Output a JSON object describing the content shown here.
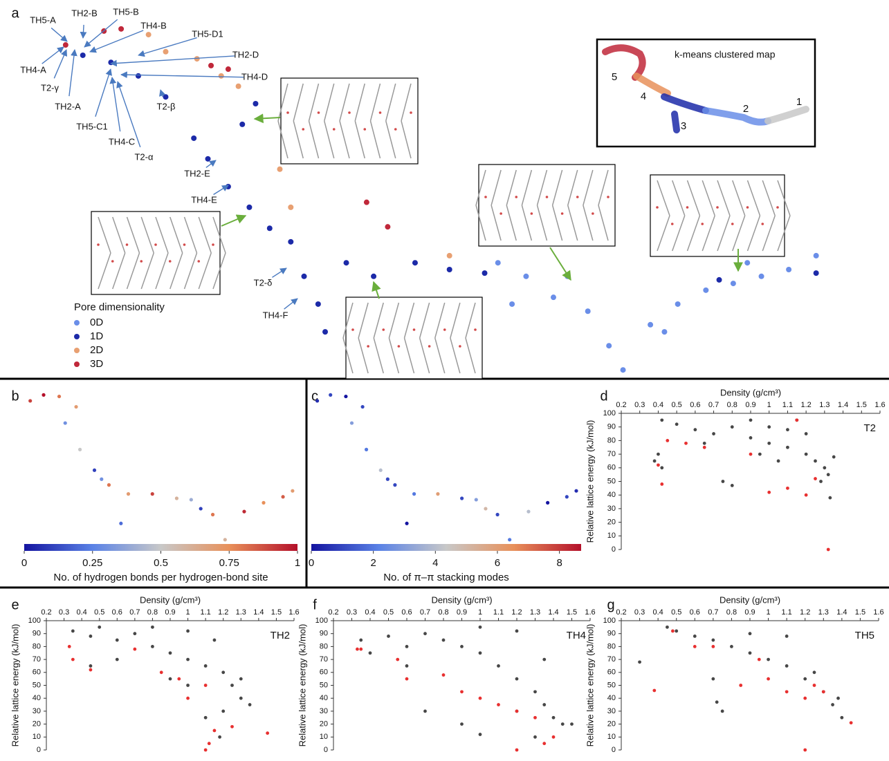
{
  "chart_data": [
    {
      "panel": "a",
      "type": "scatter",
      "xlim": [
        0,
        100
      ],
      "ylim": [
        0,
        100
      ],
      "legend_title": "Pore dimensionality",
      "series": [
        {
          "name": "0D",
          "color": "#6a8ee8",
          "x": [
            57.5,
            61.1,
            64.6,
            69.0,
            71.7,
            73.5,
            77.0,
            80.5,
            84.1,
            87.6,
            91.2,
            94.7,
            98.2,
            59.3,
            66.4,
            78.8,
            89.4
          ],
          "y": [
            32.0,
            28.2,
            22.3,
            18.4,
            8.7,
            1.9,
            14.6,
            20.4,
            24.3,
            26.2,
            28.2,
            30.1,
            34.0,
            20.4,
            28.2,
            12.6,
            32.0
          ]
        },
        {
          "name": "1D",
          "color": "#1c2aa8",
          "x": [
            4.4,
            8.0,
            11.5,
            15.0,
            18.6,
            20.4,
            23.0,
            25.7,
            28.3,
            31.0,
            32.7,
            34.5,
            35.4,
            38.1,
            41.6,
            46.9,
            51.3,
            55.8,
            24.8,
            26.5,
            85.8,
            98.2
          ],
          "y": [
            90.3,
            88.3,
            84.5,
            78.6,
            67.0,
            61.2,
            53.4,
            47.6,
            41.7,
            37.9,
            28.2,
            20.4,
            12.6,
            32.0,
            28.2,
            32.0,
            30.1,
            29.1,
            70.9,
            76.7,
            27.2,
            29.1
          ]
        },
        {
          "name": "2D",
          "color": "#e8a072",
          "x": [
            12.8,
            15.0,
            19.0,
            22.1,
            24.3,
            29.6,
            31.0,
            51.3
          ],
          "y": [
            96.1,
            91.3,
            89.3,
            84.5,
            81.6,
            58.3,
            47.6,
            34.0
          ]
        },
        {
          "name": "3D",
          "color": "#c0283a",
          "x": [
            2.2,
            7.1,
            9.3,
            20.8,
            23.0,
            40.7,
            43.4
          ],
          "y": [
            93.2,
            97.1,
            97.7,
            87.4,
            86.4,
            49.0,
            42.1
          ]
        }
      ],
      "annotations": [
        "TH5-A",
        "TH2-B",
        "TH5-B",
        "TH4-B",
        "TH5-D1",
        "TH2-D",
        "TH4-D",
        "TH4-A",
        "T2-γ",
        "TH2-A",
        "TH5-C1",
        "TH4-C",
        "T2-α",
        "T2-β",
        "TH2-E",
        "TH4-E",
        "T2-δ",
        "TH4-F"
      ],
      "inset_title": "k-means clustered map",
      "cluster_labels": [
        "1",
        "2",
        "3",
        "4",
        "5"
      ]
    },
    {
      "panel": "b",
      "type": "scatter",
      "xlim": [
        0,
        100
      ],
      "ylim": [
        0,
        100
      ],
      "x": [
        2.2,
        7.1,
        12.8,
        15.0,
        19.0,
        20.4,
        25.7,
        31.0,
        35.4,
        38.1,
        46.9,
        55.8,
        61.1,
        69.0,
        73.5,
        80.5,
        87.6,
        94.7,
        98.2,
        64.6,
        28.3
      ],
      "y": [
        93.2,
        97.1,
        96.1,
        78.6,
        89.3,
        61.2,
        47.6,
        37.9,
        12.6,
        32.0,
        32.0,
        29.1,
        28.2,
        18.4,
        1.9,
        20.4,
        26.2,
        30.1,
        34.0,
        22.3,
        41.7
      ],
      "values": [
        0.9,
        1,
        0.8,
        0.3,
        0.7,
        0.5,
        0.1,
        0.8,
        0.2,
        0.7,
        0.9,
        0.6,
        0.4,
        0.8,
        0.6,
        0.95,
        0.75,
        0.85,
        0.7,
        0.1,
        0.3
      ],
      "clim": [
        0,
        1
      ],
      "cticks": [
        0,
        0.25,
        0.5,
        0.75,
        1
      ],
      "colormap": [
        "#1414a0",
        "#5a82e6",
        "#c8c8c8",
        "#e8905a",
        "#b4102a"
      ],
      "colorbar_label": "No. of hydrogen bonds per hydrogen-bond site"
    },
    {
      "panel": "c",
      "type": "scatter",
      "xlim": [
        0,
        100
      ],
      "ylim": [
        0,
        100
      ],
      "x": [
        2.2,
        7.1,
        12.8,
        15.0,
        19.0,
        20.4,
        25.7,
        31.0,
        35.4,
        38.1,
        46.9,
        55.8,
        61.1,
        69.0,
        73.5,
        80.5,
        87.6,
        94.7,
        98.2,
        64.6,
        28.3
      ],
      "y": [
        93.2,
        97.1,
        96.1,
        78.6,
        89.3,
        61.2,
        47.6,
        37.9,
        12.6,
        32.0,
        32.0,
        29.1,
        28.2,
        18.4,
        1.9,
        20.4,
        26.2,
        30.1,
        34.0,
        22.3,
        41.7
      ],
      "values": [
        0.5,
        1,
        0,
        3,
        1,
        2,
        4,
        1,
        0,
        2,
        6,
        1,
        3,
        1,
        2,
        4,
        0,
        1,
        0.5,
        5,
        1
      ],
      "clim": [
        0,
        8.7
      ],
      "cticks": [
        0,
        2,
        4,
        6,
        8
      ],
      "colormap": [
        "#1414a0",
        "#5a82e6",
        "#c8c8c8",
        "#e8905a",
        "#b4102a"
      ],
      "colorbar_label": "No. of π–π stacking modes"
    },
    {
      "panel": "d",
      "type": "scatter",
      "xlabel": "Density (g/cm³)",
      "ylabel": "Relative lattice energy (kJ/mol)",
      "annotation": "T2",
      "xlim": [
        0.2,
        1.6
      ],
      "xticks": [
        0.2,
        0.3,
        0.4,
        0.5,
        0.6,
        0.7,
        0.8,
        0.9,
        1.0,
        1.1,
        1.2,
        1.3,
        1.4,
        1.5,
        1.6
      ],
      "ylim": [
        0,
        100
      ],
      "yticks": [
        0,
        10,
        20,
        30,
        40,
        50,
        60,
        70,
        80,
        90,
        100
      ],
      "series": [
        {
          "color": "#474747",
          "x": [
            0.42,
            0.5,
            0.6,
            0.7,
            0.8,
            0.9,
            1.0,
            1.1,
            1.2,
            1.25,
            1.3,
            1.32,
            0.4,
            0.38,
            0.42,
            0.75,
            0.8,
            0.9,
            1.0,
            1.1,
            1.2,
            1.15,
            0.95,
            1.05,
            1.28,
            1.33,
            0.65,
            1.35
          ],
          "y": [
            95,
            92,
            88,
            85,
            90,
            82,
            78,
            75,
            70,
            65,
            60,
            55,
            70,
            65,
            60,
            50,
            47,
            95,
            90,
            88,
            85,
            95,
            70,
            65,
            50,
            38,
            78,
            68
          ]
        },
        {
          "color": "#e83030",
          "x": [
            0.4,
            0.42,
            0.45,
            0.55,
            0.65,
            0.9,
            1.0,
            1.1,
            1.2,
            1.25,
            1.15,
            1.32
          ],
          "y": [
            62,
            48,
            80,
            78,
            75,
            70,
            42,
            45,
            40,
            52,
            95,
            0
          ]
        }
      ]
    },
    {
      "panel": "e",
      "type": "scatter",
      "xlabel": "Density (g/cm³)",
      "ylabel": "Relative lattice energy (kJ/mol)",
      "annotation": "TH2",
      "xlim": [
        0.2,
        1.6
      ],
      "xticks": [
        0.2,
        0.3,
        0.4,
        0.5,
        0.6,
        0.7,
        0.8,
        0.9,
        1.0,
        1.1,
        1.2,
        1.3,
        1.4,
        1.5,
        1.6
      ],
      "ylim": [
        0,
        100
      ],
      "yticks": [
        0,
        10,
        20,
        30,
        40,
        50,
        60,
        70,
        80,
        90,
        100
      ],
      "series": [
        {
          "color": "#474747",
          "x": [
            0.35,
            0.45,
            0.5,
            0.6,
            0.7,
            0.8,
            0.9,
            1.0,
            1.1,
            1.2,
            1.25,
            1.3,
            1.35,
            1.2,
            1.1,
            0.45,
            0.8,
            1.0,
            1.15,
            1.3,
            0.9,
            1.0,
            1.18,
            0.6
          ],
          "y": [
            92,
            88,
            95,
            85,
            90,
            80,
            75,
            70,
            65,
            60,
            50,
            40,
            35,
            30,
            25,
            65,
            95,
            92,
            85,
            55,
            55,
            50,
            10,
            70
          ]
        },
        {
          "color": "#e83030",
          "x": [
            0.33,
            0.35,
            0.45,
            0.7,
            0.85,
            0.95,
            1.1,
            1.1,
            1.12,
            1.15,
            1.25,
            1.45,
            1.0
          ],
          "y": [
            80,
            70,
            62,
            78,
            60,
            55,
            50,
            0,
            5,
            15,
            18,
            13,
            40
          ]
        }
      ]
    },
    {
      "panel": "f",
      "type": "scatter",
      "xlabel": "Density (g/cm³)",
      "ylabel": "Relative lattice energy (kJ/mol)",
      "annotation": "TH4",
      "xlim": [
        0.2,
        1.6
      ],
      "xticks": [
        0.2,
        0.3,
        0.4,
        0.5,
        0.6,
        0.7,
        0.8,
        0.9,
        1.0,
        1.1,
        1.2,
        1.3,
        1.4,
        1.5,
        1.6
      ],
      "ylim": [
        0,
        100
      ],
      "yticks": [
        0,
        10,
        20,
        30,
        40,
        50,
        60,
        70,
        80,
        90,
        100
      ],
      "series": [
        {
          "color": "#474747",
          "x": [
            0.35,
            0.4,
            0.5,
            0.6,
            0.7,
            0.8,
            0.9,
            1.0,
            1.1,
            1.2,
            1.3,
            1.35,
            1.4,
            1.45,
            1.5,
            0.7,
            0.9,
            1.0,
            1.2,
            1.3,
            0.6,
            1.0,
            1.2,
            1.35
          ],
          "y": [
            85,
            75,
            88,
            80,
            90,
            85,
            80,
            75,
            65,
            55,
            45,
            35,
            25,
            20,
            20,
            30,
            20,
            12,
            30,
            10,
            65,
            95,
            92,
            70
          ]
        },
        {
          "color": "#e83030",
          "x": [
            0.33,
            0.35,
            0.55,
            0.6,
            0.8,
            0.9,
            1.0,
            1.1,
            1.2,
            1.3,
            1.35,
            1.2,
            1.4
          ],
          "y": [
            78,
            78,
            70,
            55,
            58,
            45,
            40,
            35,
            30,
            25,
            5,
            0,
            10
          ]
        }
      ]
    },
    {
      "panel": "g",
      "type": "scatter",
      "xlabel": "Density (g/cm³)",
      "ylabel": "Relative lattice energy (kJ/mol)",
      "annotation": "TH5",
      "xlim": [
        0.2,
        1.6
      ],
      "xticks": [
        0.2,
        0.3,
        0.4,
        0.5,
        0.6,
        0.7,
        0.8,
        0.9,
        1.0,
        1.1,
        1.2,
        1.3,
        1.4,
        1.5,
        1.6
      ],
      "ylim": [
        0,
        100
      ],
      "yticks": [
        0,
        10,
        20,
        30,
        40,
        50,
        60,
        70,
        80,
        90,
        100
      ],
      "series": [
        {
          "color": "#474747",
          "x": [
            0.3,
            0.45,
            0.5,
            0.6,
            0.7,
            0.8,
            0.9,
            1.0,
            1.1,
            1.2,
            1.3,
            1.35,
            1.4,
            1.38,
            0.7,
            0.72,
            0.75,
            0.9,
            1.1,
            1.25
          ],
          "y": [
            68,
            95,
            92,
            88,
            85,
            80,
            75,
            70,
            65,
            55,
            45,
            35,
            25,
            40,
            55,
            37,
            30,
            90,
            88,
            60
          ]
        },
        {
          "color": "#e83030",
          "x": [
            0.38,
            0.48,
            0.6,
            0.7,
            0.85,
            1.0,
            1.1,
            1.2,
            1.25,
            1.3,
            1.2,
            1.45,
            0.95
          ],
          "y": [
            46,
            92,
            80,
            80,
            50,
            55,
            45,
            40,
            50,
            45,
            0,
            21,
            70
          ]
        }
      ]
    }
  ]
}
